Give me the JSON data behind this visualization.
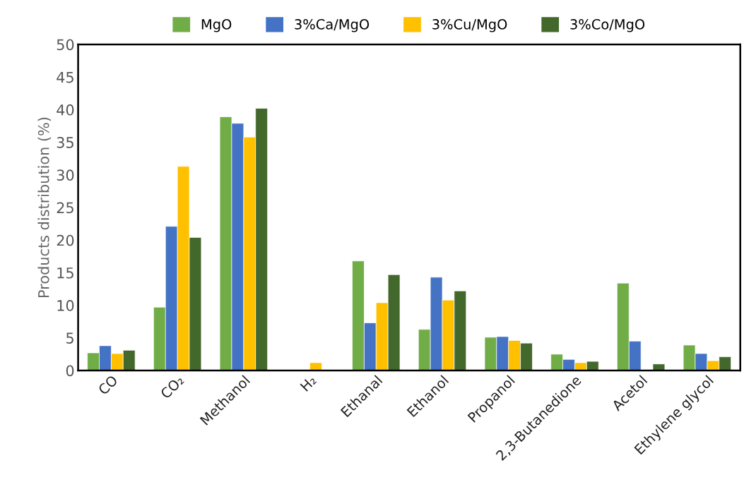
{
  "chart_data": {
    "type": "bar",
    "ylabel": "Products distribution (%)",
    "categories": [
      "CO",
      "CO₂",
      "Methanol",
      "H₂",
      "Ethanal",
      "Ethanol",
      "Propanol",
      "2,3-Butanedione",
      "Acetol",
      "Ethylene glycol"
    ],
    "series": [
      {
        "name": "MgO",
        "color": "#70ad47",
        "values": [
          2.7,
          9.7,
          38.9,
          null,
          16.8,
          6.3,
          5.1,
          2.5,
          13.4,
          3.9
        ]
      },
      {
        "name": "3%Ca/MgO",
        "color": "#4472c4",
        "values": [
          3.8,
          22.1,
          37.9,
          null,
          7.3,
          14.3,
          5.2,
          1.7,
          4.5,
          2.6
        ]
      },
      {
        "name": "3%Cu/MgO",
        "color": "#ffc000",
        "values": [
          2.6,
          31.3,
          35.8,
          1.2,
          10.4,
          10.8,
          4.6,
          1.2,
          null,
          1.5
        ]
      },
      {
        "name": "3%Co/MgO",
        "color": "#43682b",
        "values": [
          3.1,
          20.4,
          40.2,
          null,
          14.7,
          12.2,
          4.2,
          1.4,
          1.0,
          2.1
        ]
      }
    ],
    "ylim": [
      0,
      50
    ],
    "yticks": [
      0,
      5,
      10,
      15,
      20,
      25,
      30,
      35,
      40,
      45,
      50
    ],
    "grid": false,
    "legend": "top"
  }
}
